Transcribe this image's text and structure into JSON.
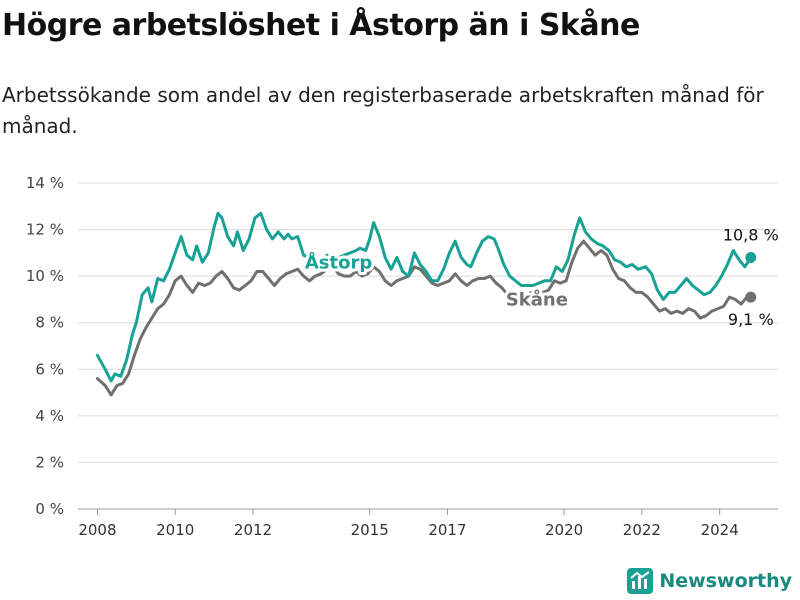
{
  "title": "Högre arbetslöshet i Åstorp än i Skåne",
  "subtitle": "Arbetssökande som andel av den registerbaserade arbetskraften månad för månad.",
  "brand": {
    "name": "Newsworthy",
    "icon": "newsworthy-logo-icon"
  },
  "colors": {
    "astorp": "#17a295",
    "skane": "#707070",
    "grid": "#dcdcdc",
    "axis": "#999999"
  },
  "chart_data": {
    "type": "line",
    "title": "Högre arbetslöshet i Åstorp än i Skåne",
    "xlabel": "",
    "ylabel": "",
    "xlim": [
      2007.5,
      2025.5
    ],
    "ylim": [
      0,
      14
    ],
    "grid": true,
    "y_ticks": [
      0,
      2,
      4,
      6,
      8,
      10,
      12,
      14
    ],
    "y_tick_labels": [
      "0 %",
      "2 %",
      "4 %",
      "6 %",
      "8 %",
      "10 %",
      "12 %",
      "14 %"
    ],
    "x_ticks": [
      2008,
      2010,
      2012,
      2015,
      2017,
      2020,
      2022,
      2024
    ],
    "x_tick_labels": [
      "2008",
      "2010",
      "2012",
      "2015",
      "2017",
      "2020",
      "2022",
      "2024"
    ],
    "series": [
      {
        "name": "Åstorp",
        "label": "Åstorp",
        "end_label": "10,8 %",
        "points": [
          [
            2008.0,
            6.6
          ],
          [
            2008.2,
            6.0
          ],
          [
            2008.35,
            5.5
          ],
          [
            2008.45,
            5.8
          ],
          [
            2008.6,
            5.7
          ],
          [
            2008.75,
            6.4
          ],
          [
            2008.9,
            7.5
          ],
          [
            2009.0,
            8.0
          ],
          [
            2009.15,
            9.2
          ],
          [
            2009.3,
            9.5
          ],
          [
            2009.4,
            8.9
          ],
          [
            2009.55,
            9.9
          ],
          [
            2009.7,
            9.8
          ],
          [
            2009.85,
            10.3
          ],
          [
            2010.0,
            11.0
          ],
          [
            2010.15,
            11.7
          ],
          [
            2010.3,
            10.9
          ],
          [
            2010.45,
            10.7
          ],
          [
            2010.55,
            11.3
          ],
          [
            2010.7,
            10.6
          ],
          [
            2010.85,
            11.0
          ],
          [
            2011.0,
            12.1
          ],
          [
            2011.1,
            12.7
          ],
          [
            2011.2,
            12.5
          ],
          [
            2011.35,
            11.7
          ],
          [
            2011.5,
            11.3
          ],
          [
            2011.6,
            11.9
          ],
          [
            2011.75,
            11.1
          ],
          [
            2011.9,
            11.6
          ],
          [
            2012.05,
            12.5
          ],
          [
            2012.2,
            12.7
          ],
          [
            2012.35,
            12.0
          ],
          [
            2012.5,
            11.6
          ],
          [
            2012.65,
            11.9
          ],
          [
            2012.8,
            11.6
          ],
          [
            2012.9,
            11.8
          ],
          [
            2013.0,
            11.6
          ],
          [
            2013.15,
            11.7
          ],
          [
            2013.3,
            10.9
          ],
          [
            2013.45,
            10.8
          ],
          [
            2013.6,
            10.4
          ],
          [
            2013.75,
            10.5
          ],
          [
            2013.9,
            10.9
          ],
          [
            2014.05,
            10.6
          ],
          [
            2014.2,
            10.8
          ],
          [
            2014.35,
            10.9
          ],
          [
            2014.5,
            11.0
          ],
          [
            2014.65,
            11.1
          ],
          [
            2014.75,
            11.2
          ],
          [
            2014.9,
            11.1
          ],
          [
            2015.0,
            11.6
          ],
          [
            2015.1,
            12.3
          ],
          [
            2015.25,
            11.7
          ],
          [
            2015.4,
            10.8
          ],
          [
            2015.55,
            10.3
          ],
          [
            2015.7,
            10.8
          ],
          [
            2015.85,
            10.2
          ],
          [
            2016.0,
            10.0
          ],
          [
            2016.15,
            11.0
          ],
          [
            2016.3,
            10.5
          ],
          [
            2016.45,
            10.2
          ],
          [
            2016.6,
            9.8
          ],
          [
            2016.75,
            9.8
          ],
          [
            2016.9,
            10.3
          ],
          [
            2017.05,
            11.0
          ],
          [
            2017.2,
            11.5
          ],
          [
            2017.35,
            10.8
          ],
          [
            2017.5,
            10.5
          ],
          [
            2017.6,
            10.4
          ],
          [
            2017.75,
            11.0
          ],
          [
            2017.9,
            11.5
          ],
          [
            2018.05,
            11.7
          ],
          [
            2018.2,
            11.6
          ],
          [
            2018.3,
            11.2
          ],
          [
            2018.45,
            10.5
          ],
          [
            2018.6,
            10.0
          ],
          [
            2018.75,
            9.8
          ],
          [
            2018.9,
            9.6
          ],
          [
            2019.05,
            9.6
          ],
          [
            2019.2,
            9.6
          ],
          [
            2019.35,
            9.7
          ],
          [
            2019.5,
            9.8
          ],
          [
            2019.65,
            9.8
          ],
          [
            2019.8,
            10.4
          ],
          [
            2019.95,
            10.2
          ],
          [
            2020.1,
            10.7
          ],
          [
            2020.25,
            11.7
          ],
          [
            2020.4,
            12.5
          ],
          [
            2020.55,
            11.9
          ],
          [
            2020.7,
            11.6
          ],
          [
            2020.85,
            11.4
          ],
          [
            2021.0,
            11.3
          ],
          [
            2021.15,
            11.1
          ],
          [
            2021.3,
            10.7
          ],
          [
            2021.45,
            10.6
          ],
          [
            2021.6,
            10.4
          ],
          [
            2021.75,
            10.5
          ],
          [
            2021.9,
            10.3
          ],
          [
            2022.1,
            10.4
          ],
          [
            2022.25,
            10.1
          ],
          [
            2022.4,
            9.4
          ],
          [
            2022.55,
            9.0
          ],
          [
            2022.7,
            9.3
          ],
          [
            2022.85,
            9.3
          ],
          [
            2023.0,
            9.6
          ],
          [
            2023.15,
            9.9
          ],
          [
            2023.3,
            9.6
          ],
          [
            2023.45,
            9.4
          ],
          [
            2023.6,
            9.2
          ],
          [
            2023.75,
            9.3
          ],
          [
            2023.9,
            9.6
          ],
          [
            2024.05,
            10.0
          ],
          [
            2024.2,
            10.5
          ],
          [
            2024.35,
            11.1
          ],
          [
            2024.5,
            10.7
          ],
          [
            2024.65,
            10.4
          ],
          [
            2024.8,
            10.8
          ]
        ]
      },
      {
        "name": "Skåne",
        "label": "Skåne",
        "end_label": "9,1 %",
        "points": [
          [
            2008.0,
            5.6
          ],
          [
            2008.2,
            5.3
          ],
          [
            2008.35,
            4.9
          ],
          [
            2008.5,
            5.3
          ],
          [
            2008.65,
            5.4
          ],
          [
            2008.8,
            5.8
          ],
          [
            2008.95,
            6.6
          ],
          [
            2009.1,
            7.3
          ],
          [
            2009.25,
            7.8
          ],
          [
            2009.4,
            8.2
          ],
          [
            2009.55,
            8.6
          ],
          [
            2009.7,
            8.8
          ],
          [
            2009.85,
            9.2
          ],
          [
            2010.0,
            9.8
          ],
          [
            2010.15,
            10.0
          ],
          [
            2010.3,
            9.6
          ],
          [
            2010.45,
            9.3
          ],
          [
            2010.6,
            9.7
          ],
          [
            2010.75,
            9.6
          ],
          [
            2010.9,
            9.7
          ],
          [
            2011.05,
            10.0
          ],
          [
            2011.2,
            10.2
          ],
          [
            2011.35,
            9.9
          ],
          [
            2011.5,
            9.5
          ],
          [
            2011.65,
            9.4
          ],
          [
            2011.8,
            9.6
          ],
          [
            2011.95,
            9.8
          ],
          [
            2012.1,
            10.2
          ],
          [
            2012.25,
            10.2
          ],
          [
            2012.4,
            9.9
          ],
          [
            2012.55,
            9.6
          ],
          [
            2012.7,
            9.9
          ],
          [
            2012.85,
            10.1
          ],
          [
            2013.0,
            10.2
          ],
          [
            2013.15,
            10.3
          ],
          [
            2013.3,
            10.0
          ],
          [
            2013.45,
            9.8
          ],
          [
            2013.6,
            10.0
          ],
          [
            2013.75,
            10.1
          ],
          [
            2013.9,
            10.3
          ],
          [
            2014.05,
            10.4
          ],
          [
            2014.2,
            10.1
          ],
          [
            2014.35,
            10.0
          ],
          [
            2014.5,
            10.0
          ],
          [
            2014.65,
            10.2
          ],
          [
            2014.8,
            10.0
          ],
          [
            2014.95,
            10.1
          ],
          [
            2015.1,
            10.4
          ],
          [
            2015.25,
            10.2
          ],
          [
            2015.4,
            9.8
          ],
          [
            2015.55,
            9.6
          ],
          [
            2015.7,
            9.8
          ],
          [
            2015.85,
            9.9
          ],
          [
            2016.0,
            10.0
          ],
          [
            2016.15,
            10.4
          ],
          [
            2016.3,
            10.3
          ],
          [
            2016.45,
            10.0
          ],
          [
            2016.6,
            9.7
          ],
          [
            2016.75,
            9.6
          ],
          [
            2016.9,
            9.7
          ],
          [
            2017.05,
            9.8
          ],
          [
            2017.2,
            10.1
          ],
          [
            2017.35,
            9.8
          ],
          [
            2017.5,
            9.6
          ],
          [
            2017.65,
            9.8
          ],
          [
            2017.8,
            9.9
          ],
          [
            2017.95,
            9.9
          ],
          [
            2018.1,
            10.0
          ],
          [
            2018.25,
            9.7
          ],
          [
            2018.4,
            9.5
          ],
          [
            2018.55,
            9.2
          ],
          [
            2018.7,
            9.0
          ],
          [
            2018.85,
            9.0
          ],
          [
            2019.0,
            9.1
          ],
          [
            2019.15,
            9.3
          ],
          [
            2019.3,
            9.4
          ],
          [
            2019.45,
            9.3
          ],
          [
            2019.6,
            9.4
          ],
          [
            2019.75,
            9.8
          ],
          [
            2019.9,
            9.7
          ],
          [
            2020.05,
            9.8
          ],
          [
            2020.2,
            10.6
          ],
          [
            2020.35,
            11.2
          ],
          [
            2020.5,
            11.5
          ],
          [
            2020.65,
            11.2
          ],
          [
            2020.8,
            10.9
          ],
          [
            2020.95,
            11.1
          ],
          [
            2021.1,
            10.9
          ],
          [
            2021.25,
            10.3
          ],
          [
            2021.4,
            9.9
          ],
          [
            2021.55,
            9.8
          ],
          [
            2021.7,
            9.5
          ],
          [
            2021.85,
            9.3
          ],
          [
            2022.0,
            9.3
          ],
          [
            2022.15,
            9.1
          ],
          [
            2022.3,
            8.8
          ],
          [
            2022.45,
            8.5
          ],
          [
            2022.6,
            8.6
          ],
          [
            2022.75,
            8.4
          ],
          [
            2022.9,
            8.5
          ],
          [
            2023.05,
            8.4
          ],
          [
            2023.2,
            8.6
          ],
          [
            2023.35,
            8.5
          ],
          [
            2023.5,
            8.2
          ],
          [
            2023.65,
            8.3
          ],
          [
            2023.8,
            8.5
          ],
          [
            2023.95,
            8.6
          ],
          [
            2024.1,
            8.7
          ],
          [
            2024.25,
            9.1
          ],
          [
            2024.4,
            9.0
          ],
          [
            2024.55,
            8.8
          ],
          [
            2024.7,
            9.1
          ],
          [
            2024.8,
            9.1
          ]
        ]
      }
    ]
  }
}
